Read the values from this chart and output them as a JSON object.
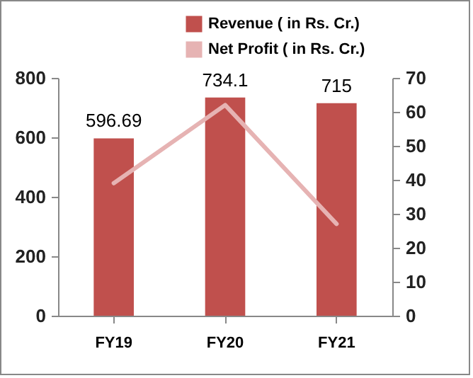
{
  "chart_data": {
    "type": "bar",
    "categories": [
      "FY19",
      "FY20",
      "FY21"
    ],
    "series": [
      {
        "name": "Revenue ( in Rs. Cr.)",
        "color": "#c0504d",
        "values": [
          596.69,
          734.1,
          715
        ],
        "value_labels": [
          "596.69",
          "734.1",
          "715"
        ]
      },
      {
        "name": "Net Profit ( in Rs. Cr.)",
        "type": "line",
        "axis": "y2",
        "color": "#e6b3b3",
        "values": [
          39,
          62,
          27
        ]
      }
    ],
    "ylim": [
      0,
      800
    ],
    "yticks": [
      0,
      200,
      400,
      600,
      800
    ],
    "y2lim": [
      0,
      70
    ],
    "y2ticks": [
      0,
      10,
      20,
      30,
      40,
      50,
      60,
      70
    ],
    "grid": false,
    "legend": "top right"
  }
}
